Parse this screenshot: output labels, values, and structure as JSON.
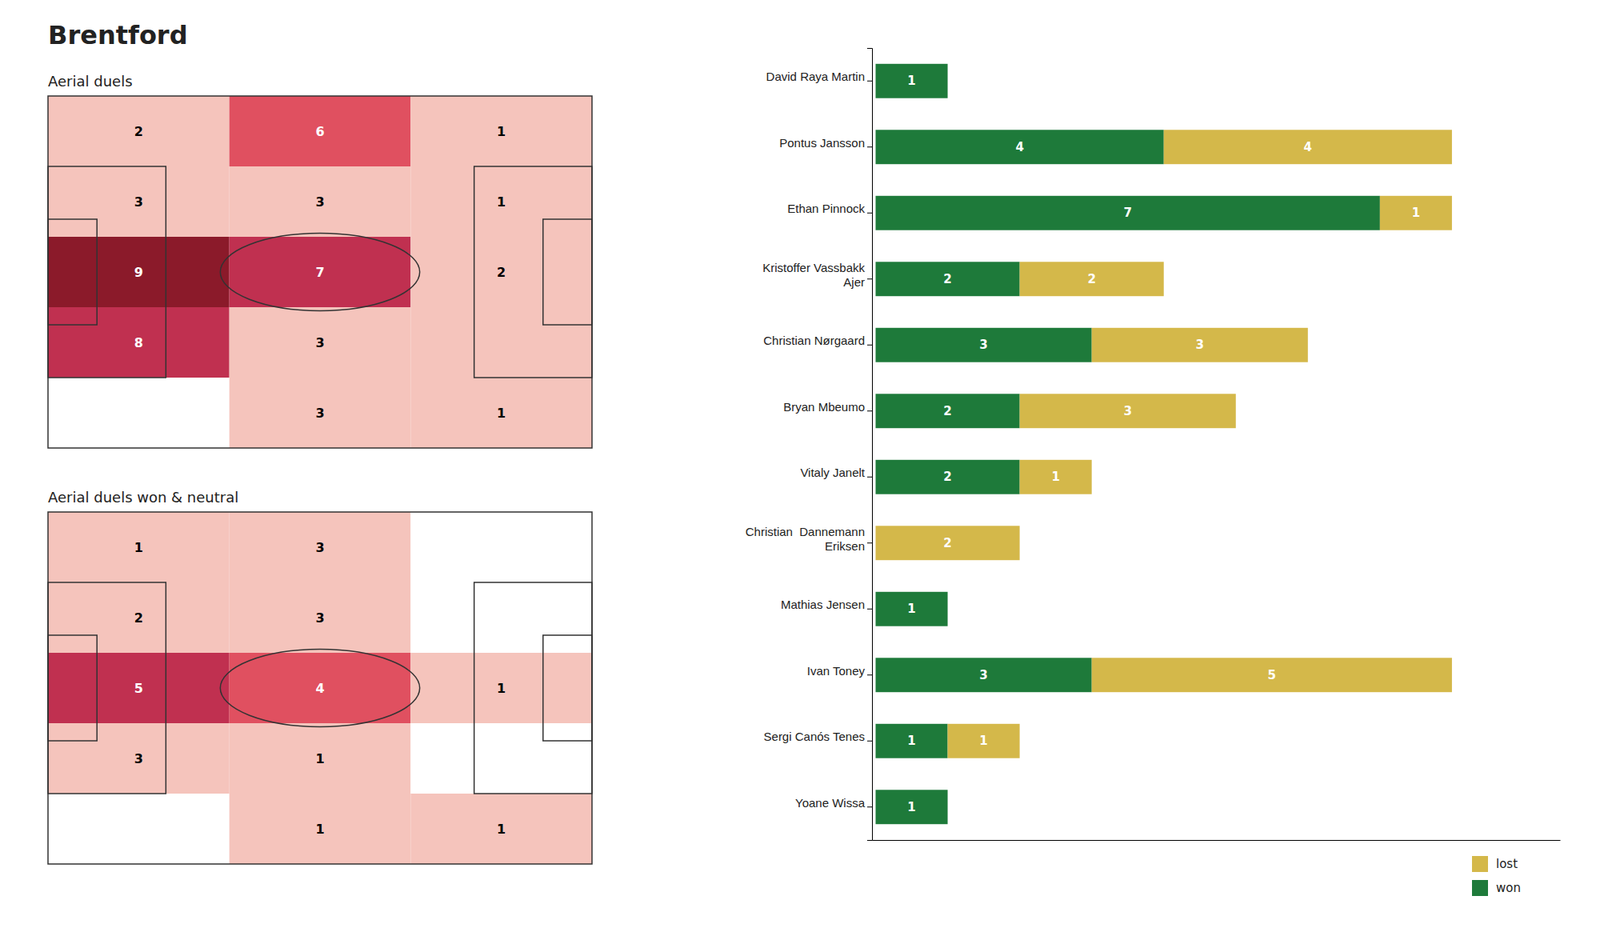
{
  "title": "Brentford",
  "chart_data": [
    {
      "type": "heatmap",
      "title": "Aerial duels",
      "values": [
        [
          2,
          6,
          1
        ],
        [
          3,
          3,
          1
        ],
        [
          9,
          7,
          2
        ],
        [
          8,
          3,
          null
        ],
        [
          null,
          3,
          1
        ]
      ],
      "colors": [
        [
          "#f5c4bc",
          "#e05060",
          "#f5c4bc"
        ],
        [
          "#f5c4bc",
          "#f5c4bc",
          "#f5c4bc"
        ],
        [
          "#8b1a2a",
          "#c03050",
          "#f5c4bc"
        ],
        [
          "#c03050",
          "#f5c4bc",
          "#f5c4bc"
        ],
        [
          "#ffffff",
          "#f5c4bc",
          "#f5c4bc"
        ]
      ],
      "data_labels": true,
      "tick_labels": false
    },
    {
      "type": "heatmap",
      "title": "Aerial duels won & neutral",
      "values": [
        [
          1,
          3,
          null
        ],
        [
          2,
          3,
          null
        ],
        [
          5,
          4,
          1
        ],
        [
          3,
          1,
          null
        ],
        [
          null,
          1,
          1
        ]
      ],
      "colors": [
        [
          "#f5c4bc",
          "#f5c4bc",
          "#ffffff"
        ],
        [
          "#f5c4bc",
          "#f5c4bc",
          "#ffffff"
        ],
        [
          "#c03050",
          "#e05060",
          "#f5c4bc"
        ],
        [
          "#f5c4bc",
          "#f5c4bc",
          "#ffffff"
        ],
        [
          "#ffffff",
          "#f5c4bc",
          "#f5c4bc"
        ]
      ],
      "data_labels": true,
      "tick_labels": false
    },
    {
      "type": "bar",
      "orientation": "horizontal",
      "stacked": true,
      "categories": [
        "David Raya Martin",
        "Pontus Jansson",
        "Ethan Pinnock",
        "Kristoffer Vassbakk\nAjer",
        "Christian Nørgaard",
        "Bryan Mbeumo",
        "Vitaly Janelt",
        "Christian  Dannemann\nEriksen",
        "Mathias Jensen",
        "Ivan Toney",
        "Sergi Canós Tenes",
        "Yoane Wissa"
      ],
      "series": [
        {
          "name": "won",
          "color": "#1e7a3a",
          "values": [
            1,
            4,
            7,
            2,
            3,
            2,
            2,
            0,
            1,
            3,
            1,
            1
          ]
        },
        {
          "name": "lost",
          "color": "#d4b84a",
          "values": [
            0,
            4,
            1,
            2,
            3,
            3,
            1,
            2,
            0,
            5,
            1,
            0
          ]
        }
      ],
      "xlim": [
        -0.05,
        9.5
      ],
      "data_labels": true,
      "tick_labels": "y",
      "legend": "lower right"
    }
  ]
}
